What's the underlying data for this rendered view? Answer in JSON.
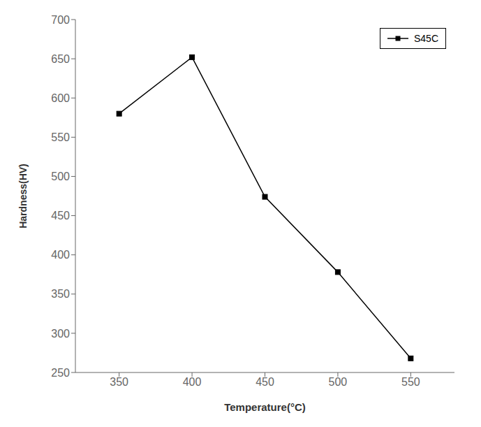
{
  "chart_data": {
    "type": "line",
    "xlabel": "Temperature(°C)",
    "ylabel": "Hardness(HV)",
    "x": [
      350,
      400,
      450,
      500,
      550
    ],
    "series": [
      {
        "name": "S45C",
        "color": "#000000",
        "marker": "square",
        "values": [
          580,
          652,
          474,
          378,
          268
        ]
      }
    ],
    "xlim": [
      320,
      580
    ],
    "ylim": [
      250,
      700
    ],
    "xticks": [
      350,
      400,
      450,
      500,
      550
    ],
    "yticks": [
      250,
      300,
      350,
      400,
      450,
      500,
      550,
      600,
      650,
      700
    ],
    "grid": false,
    "legend": "upper right"
  }
}
